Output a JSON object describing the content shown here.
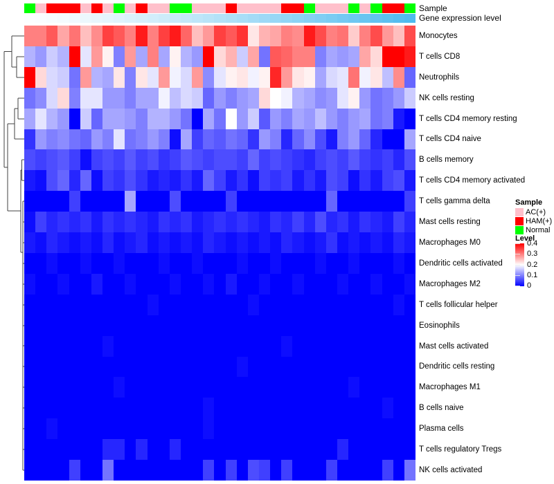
{
  "annotations": {
    "sample_label": "Sample",
    "gene_label": "Gene expression level",
    "class_colors": {
      "AC(+)": "#FFC0CB",
      "HAM(+)": "#FF0000",
      "Normal": "#00FF00"
    },
    "gene_gradient": {
      "start": "#FCFEFF",
      "end": "#4FBBEE"
    }
  },
  "legend": {
    "sample_title": "Sample",
    "sample_items": [
      {
        "label": "AC(+)",
        "color": "#FFC0CB"
      },
      {
        "label": "HAM(+)",
        "color": "#FF0000"
      },
      {
        "label": "Normal",
        "color": "#00FF00"
      }
    ],
    "level_title": "Level",
    "level_ticks": [
      "0.4",
      "0.3",
      "0.2",
      "0.1",
      "0"
    ],
    "level_gradient": [
      "#FF0000",
      "#FFFFFF",
      "#0000FF"
    ]
  },
  "chart_data": {
    "type": "heatmap",
    "title": "",
    "colormap": {
      "domain": [
        0,
        0.2,
        0.4
      ],
      "colors": [
        "#0000FF",
        "#FFFFFF",
        "#FF0000"
      ]
    },
    "legend_position": "right",
    "n_columns": 35,
    "column_sample_class": [
      "Normal",
      "AC(+)",
      "HAM(+)",
      "HAM(+)",
      "HAM(+)",
      "AC(+)",
      "HAM(+)",
      "AC(+)",
      "Normal",
      "AC(+)",
      "HAM(+)",
      "AC(+)",
      "AC(+)",
      "Normal",
      "Normal",
      "AC(+)",
      "AC(+)",
      "AC(+)",
      "HAM(+)",
      "AC(+)",
      "AC(+)",
      "AC(+)",
      "AC(+)",
      "HAM(+)",
      "HAM(+)",
      "Normal",
      "AC(+)",
      "AC(+)",
      "AC(+)",
      "Normal",
      "AC(+)",
      "Normal",
      "HAM(+)",
      "HAM(+)",
      "Normal"
    ],
    "gene_expression_level": "increasing left to right (white to blue gradient)",
    "rows": [
      {
        "name": "Monocytes",
        "values": [
          0.3,
          0.3,
          0.33,
          0.27,
          0.31,
          0.25,
          0.29,
          0.35,
          0.33,
          0.3,
          0.38,
          0.3,
          0.35,
          0.38,
          0.32,
          0.25,
          0.28,
          0.35,
          0.33,
          0.36,
          0.22,
          0.26,
          0.27,
          0.3,
          0.29,
          0.38,
          0.34,
          0.3,
          0.31,
          0.24,
          0.3,
          0.34,
          0.28,
          0.25,
          0.34
        ]
      },
      {
        "name": "T cells CD8",
        "values": [
          0.14,
          0.12,
          0.16,
          0.14,
          0.4,
          0.18,
          0.28,
          0.21,
          0.1,
          0.28,
          0.13,
          0.3,
          0.13,
          0.21,
          0.14,
          0.12,
          0.4,
          0.23,
          0.26,
          0.16,
          0.27,
          0.09,
          0.33,
          0.32,
          0.3,
          0.3,
          0.1,
          0.13,
          0.12,
          0.13,
          0.27,
          0.23,
          0.4,
          0.4,
          0.38
        ]
      },
      {
        "name": "Neutrophils",
        "values": [
          0.4,
          0.23,
          0.17,
          0.16,
          0.09,
          0.28,
          0.14,
          0.13,
          0.22,
          0.1,
          0.22,
          0.18,
          0.28,
          0.19,
          0.17,
          0.28,
          0.11,
          0.18,
          0.21,
          0.22,
          0.19,
          0.21,
          0.37,
          0.28,
          0.22,
          0.21,
          0.13,
          0.17,
          0.18,
          0.31,
          0.19,
          0.22,
          0.15,
          0.29,
          0.08
        ]
      },
      {
        "name": "NK cells resting",
        "values": [
          0.09,
          0.11,
          0.17,
          0.23,
          0.1,
          0.18,
          0.18,
          0.12,
          0.12,
          0.1,
          0.13,
          0.13,
          0.19,
          0.15,
          0.17,
          0.16,
          0.08,
          0.12,
          0.1,
          0.12,
          0.13,
          0.23,
          0.2,
          0.19,
          0.14,
          0.13,
          0.11,
          0.12,
          0.18,
          0.21,
          0.12,
          0.09,
          0.1,
          0.12,
          0.16
        ]
      },
      {
        "name": "T cells CD4 memory resting",
        "values": [
          0.13,
          0.18,
          0.14,
          0.12,
          0.0,
          0.16,
          0.08,
          0.13,
          0.13,
          0.12,
          0.1,
          0.14,
          0.14,
          0.12,
          0.09,
          0.0,
          0.13,
          0.09,
          0.2,
          0.12,
          0.16,
          0.07,
          0.12,
          0.1,
          0.13,
          0.12,
          0.15,
          0.12,
          0.1,
          0.12,
          0.13,
          0.09,
          0.1,
          0.02,
          0.0
        ]
      },
      {
        "name": "T cells CD4 naive",
        "values": [
          0.04,
          0.12,
          0.1,
          0.11,
          0.09,
          0.08,
          0.12,
          0.1,
          0.18,
          0.09,
          0.1,
          0.12,
          0.1,
          0.01,
          0.13,
          0.05,
          0.08,
          0.07,
          0.09,
          0.08,
          0.04,
          0.12,
          0.1,
          0.03,
          0.08,
          0.11,
          0.06,
          0.02,
          0.1,
          0.12,
          0.08,
          0.03,
          0.0,
          0.0,
          0.13
        ]
      },
      {
        "name": "B cells memory",
        "values": [
          0.06,
          0.05,
          0.06,
          0.07,
          0.05,
          0.01,
          0.05,
          0.06,
          0.05,
          0.07,
          0.05,
          0.06,
          0.04,
          0.05,
          0.07,
          0.06,
          0.05,
          0.06,
          0.06,
          0.05,
          0.08,
          0.05,
          0.06,
          0.05,
          0.04,
          0.03,
          0.05,
          0.06,
          0.05,
          0.07,
          0.05,
          0.04,
          0.05,
          0.03,
          0.06
        ]
      },
      {
        "name": "T cells CD4 memory activated",
        "values": [
          0.02,
          0.01,
          0.06,
          0.08,
          0.03,
          0.08,
          0.01,
          0.05,
          0.04,
          0.06,
          0.04,
          0.02,
          0.03,
          0.02,
          0.04,
          0.02,
          0.08,
          0.05,
          0.02,
          0.04,
          0.01,
          0.05,
          0.04,
          0.05,
          0.02,
          0.04,
          0.02,
          0.06,
          0.05,
          0.01,
          0.04,
          0.02,
          0.05,
          0.06,
          0.02
        ]
      },
      {
        "name": "T cells gamma delta",
        "values": [
          0.0,
          0.0,
          0.0,
          0.0,
          0.05,
          0.0,
          0.0,
          0.0,
          0.0,
          0.13,
          0.0,
          0.0,
          0.0,
          0.06,
          0.0,
          0.0,
          0.0,
          0.0,
          0.05,
          0.0,
          0.0,
          0.0,
          0.0,
          0.0,
          0.0,
          0.0,
          0.0,
          0.08,
          0.0,
          0.0,
          0.0,
          0.0,
          0.0,
          0.0,
          0.05
        ]
      },
      {
        "name": "Mast cells resting",
        "values": [
          0.01,
          0.05,
          0.03,
          0.04,
          0.03,
          0.04,
          0.02,
          0.04,
          0.03,
          0.04,
          0.03,
          0.02,
          0.04,
          0.03,
          0.04,
          0.02,
          0.03,
          0.04,
          0.03,
          0.04,
          0.03,
          0.02,
          0.04,
          0.03,
          0.05,
          0.03,
          0.06,
          0.03,
          0.04,
          0.02,
          0.04,
          0.03,
          0.02,
          0.05,
          0.03
        ]
      },
      {
        "name": "Macrophages M0",
        "values": [
          0.02,
          0.01,
          0.03,
          0.02,
          0.01,
          0.02,
          0.01,
          0.03,
          0.01,
          0.02,
          0.03,
          0.01,
          0.02,
          0.01,
          0.02,
          0.01,
          0.03,
          0.02,
          0.01,
          0.02,
          0.01,
          0.02,
          0.01,
          0.03,
          0.02,
          0.01,
          0.02,
          0.04,
          0.01,
          0.02,
          0.01,
          0.02,
          0.01,
          0.03,
          0.02
        ]
      },
      {
        "name": "Dendritic cells activated",
        "values": [
          0.0,
          0.0,
          0.01,
          0.0,
          0.0,
          0.01,
          0.0,
          0.0,
          0.01,
          0.0,
          0.0,
          0.0,
          0.01,
          0.0,
          0.0,
          0.01,
          0.0,
          0.0,
          0.0,
          0.01,
          0.0,
          0.0,
          0.01,
          0.0,
          0.0,
          0.0,
          0.01,
          0.0,
          0.0,
          0.01,
          0.0,
          0.0,
          0.0,
          0.01,
          0.0
        ]
      },
      {
        "name": "Macrophages M2",
        "values": [
          0.01,
          0.0,
          0.0,
          0.01,
          0.0,
          0.0,
          0.02,
          0.0,
          0.0,
          0.01,
          0.0,
          0.0,
          0.0,
          0.01,
          0.0,
          0.0,
          0.01,
          0.0,
          0.02,
          0.0,
          0.0,
          0.01,
          0.0,
          0.0,
          0.01,
          0.0,
          0.0,
          0.0,
          0.01,
          0.0,
          0.0,
          0.01,
          0.0,
          0.0,
          0.01
        ]
      },
      {
        "name": "T cells follicular helper",
        "values": [
          0,
          0,
          0,
          0,
          0,
          0,
          0,
          0,
          0,
          0,
          0,
          0.01,
          0,
          0,
          0,
          0,
          0,
          0,
          0,
          0,
          0.01,
          0,
          0,
          0,
          0,
          0,
          0,
          0,
          0,
          0,
          0,
          0,
          0,
          0.01,
          0
        ]
      },
      {
        "name": "Eosinophils",
        "values": [
          0,
          0,
          0,
          0,
          0,
          0,
          0,
          0,
          0,
          0,
          0,
          0,
          0,
          0,
          0,
          0,
          0,
          0,
          0,
          0,
          0,
          0,
          0,
          0,
          0,
          0,
          0,
          0,
          0,
          0,
          0,
          0,
          0,
          0,
          0
        ]
      },
      {
        "name": "Mast cells activated",
        "values": [
          0,
          0,
          0,
          0,
          0,
          0,
          0,
          0.01,
          0,
          0,
          0,
          0,
          0,
          0,
          0,
          0,
          0,
          0,
          0,
          0,
          0,
          0,
          0,
          0.01,
          0,
          0,
          0,
          0,
          0,
          0,
          0,
          0,
          0,
          0,
          0
        ]
      },
      {
        "name": "Dendritic cells resting",
        "values": [
          0,
          0,
          0,
          0,
          0,
          0,
          0,
          0,
          0,
          0,
          0,
          0,
          0,
          0,
          0,
          0,
          0,
          0,
          0,
          0.01,
          0,
          0,
          0,
          0,
          0,
          0,
          0,
          0,
          0,
          0,
          0,
          0,
          0,
          0,
          0
        ]
      },
      {
        "name": "Macrophages M1",
        "values": [
          0,
          0,
          0,
          0,
          0,
          0,
          0,
          0,
          0.01,
          0,
          0,
          0,
          0,
          0,
          0,
          0,
          0,
          0,
          0,
          0,
          0,
          0,
          0,
          0,
          0,
          0,
          0,
          0,
          0,
          0.01,
          0,
          0,
          0,
          0,
          0
        ]
      },
      {
        "name": "B cells naive",
        "values": [
          0,
          0,
          0,
          0,
          0,
          0,
          0,
          0,
          0,
          0,
          0,
          0,
          0,
          0,
          0,
          0,
          0.01,
          0,
          0,
          0,
          0,
          0,
          0,
          0,
          0,
          0,
          0,
          0,
          0,
          0,
          0,
          0,
          0.01,
          0,
          0
        ]
      },
      {
        "name": "Plasma cells",
        "values": [
          0,
          0,
          0.01,
          0,
          0,
          0,
          0,
          0,
          0,
          0,
          0,
          0,
          0,
          0,
          0,
          0,
          0.01,
          0,
          0,
          0,
          0,
          0,
          0,
          0,
          0,
          0,
          0,
          0,
          0,
          0,
          0,
          0,
          0,
          0,
          0
        ]
      },
      {
        "name": "T cells regulatory Tregs",
        "values": [
          0,
          0,
          0,
          0,
          0,
          0,
          0,
          0.03,
          0.03,
          0,
          0.03,
          0,
          0,
          0.03,
          0,
          0,
          0,
          0,
          0,
          0,
          0,
          0,
          0,
          0,
          0,
          0,
          0,
          0,
          0.03,
          0,
          0,
          0,
          0,
          0,
          0
        ]
      },
      {
        "name": "NK cells activated",
        "values": [
          0,
          0,
          0,
          0,
          0.05,
          0,
          0,
          0.09,
          0,
          0,
          0,
          0,
          0,
          0,
          0,
          0,
          0.05,
          0,
          0.05,
          0,
          0.06,
          0.05,
          0,
          0.05,
          0,
          0,
          0,
          0.05,
          0,
          0,
          0,
          0,
          0.05,
          0,
          0.09
        ]
      }
    ]
  }
}
